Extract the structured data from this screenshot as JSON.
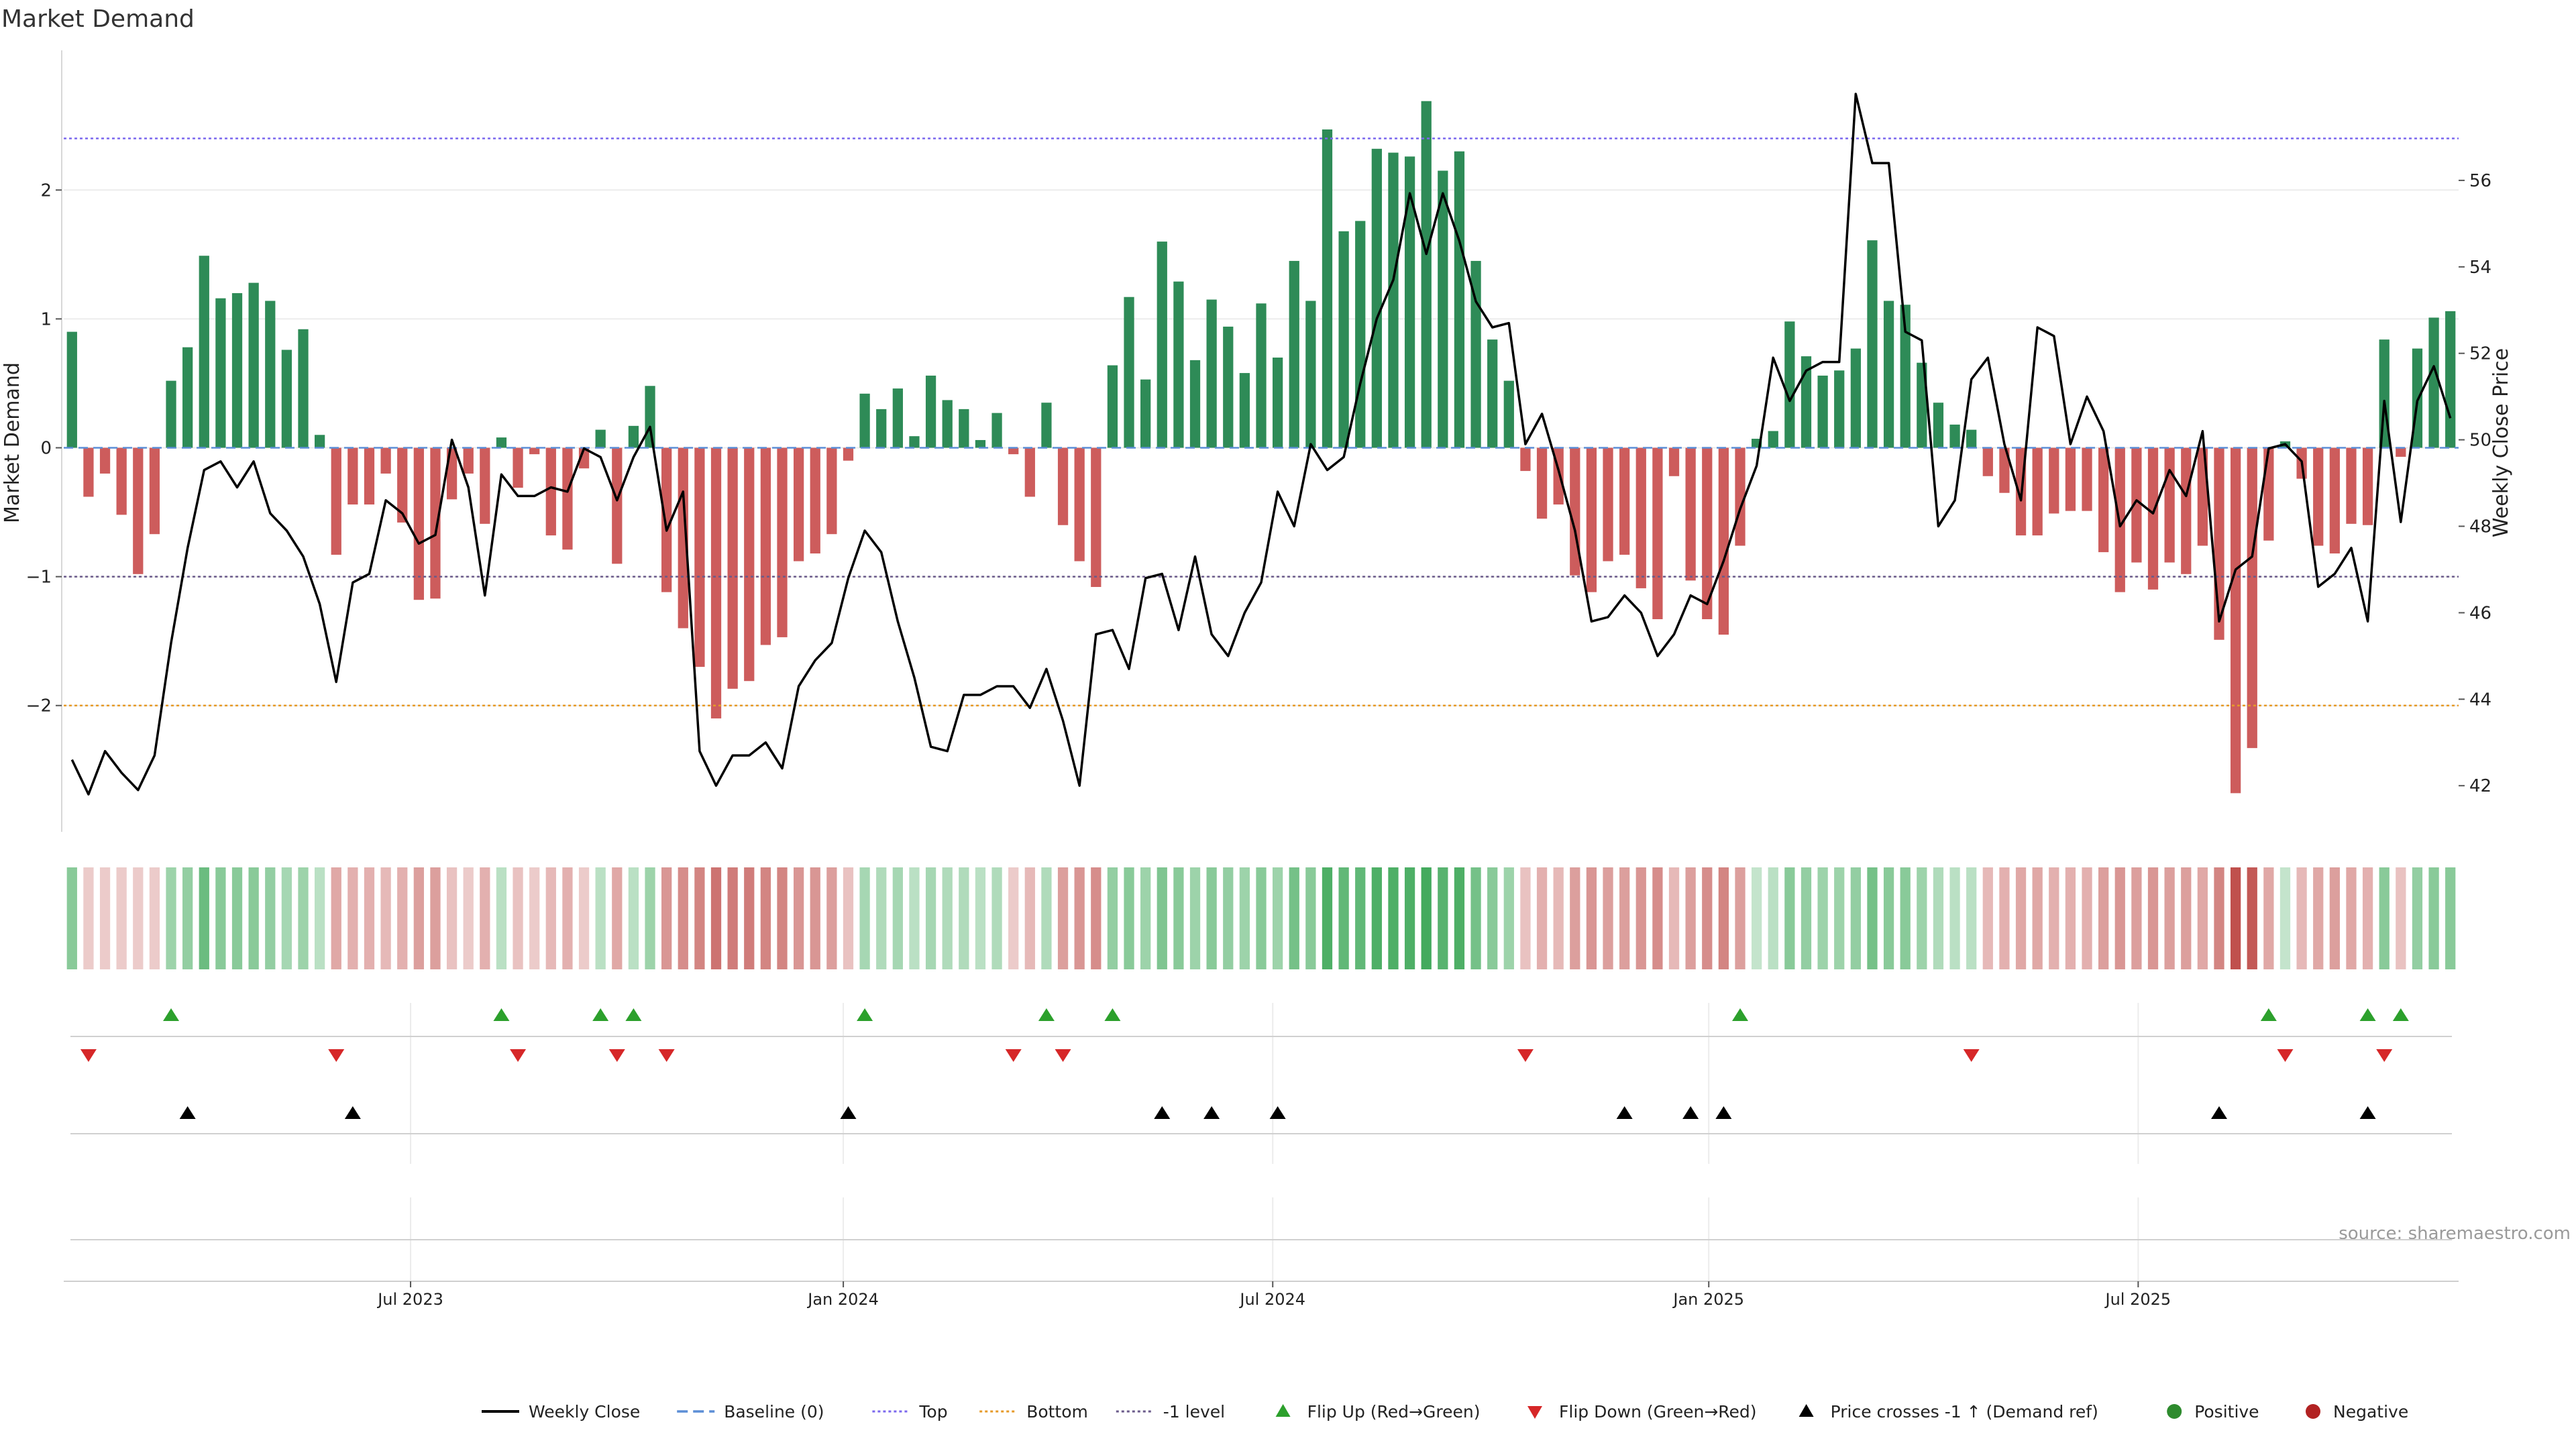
{
  "chart_data": {
    "type": "bar",
    "title": "Market Demand",
    "ylabel": "Market Demand",
    "y2label": "Weekly Close Price",
    "source": "source: sharemaestro.com",
    "ylim": [
      -2.98,
      2.98
    ],
    "y2lim": [
      40.7,
      58.0
    ],
    "yticks": [
      "2",
      "1",
      "0",
      "−1",
      "−2"
    ],
    "y2ticks": [
      "56",
      "54",
      "52",
      "50",
      "48",
      "46",
      "44",
      "42"
    ],
    "xticks": [
      "Jul 2023",
      "Jan 2024",
      "Jul 2024",
      "Jan 2025",
      "Jul 2025"
    ],
    "reference_lines": {
      "top": 2.4,
      "bottom": -2.0,
      "minus_one": -1.0,
      "baseline": 0
    },
    "grid": true,
    "legend_position": "bottom-center",
    "colors": {
      "positive_bar": "#2e8b57",
      "negative_bar": "#cd5c5c",
      "price_line": "#000000",
      "top_line": "#7b68ee",
      "bottom_line": "#e69a28",
      "minus_one_line": "#6a5a8a",
      "flip_up": "#2ca02c",
      "flip_down": "#d62728",
      "cross_marker": "#000000"
    },
    "demand": [
      0.9,
      -0.38,
      -0.2,
      -0.52,
      -0.98,
      -0.67,
      0.52,
      0.78,
      1.49,
      1.16,
      1.2,
      1.28,
      1.14,
      0.76,
      0.92,
      0.1,
      -0.83,
      -0.44,
      -0.44,
      -0.2,
      -0.58,
      -1.18,
      -1.17,
      -0.4,
      -0.2,
      -0.59,
      0.08,
      -0.31,
      -0.05,
      -0.68,
      -0.79,
      -0.16,
      0.14,
      -0.9,
      0.17,
      0.48,
      -1.12,
      -1.4,
      -1.7,
      -2.1,
      -1.87,
      -1.81,
      -1.53,
      -1.47,
      -0.88,
      -0.82,
      -0.67,
      -0.1,
      0.42,
      0.3,
      0.46,
      0.09,
      0.56,
      0.37,
      0.3,
      0.06,
      0.27,
      -0.05,
      -0.38,
      0.35,
      -0.6,
      -0.88,
      -1.08,
      0.64,
      1.17,
      0.53,
      1.6,
      1.29,
      0.68,
      1.15,
      0.94,
      0.58,
      1.12,
      0.7,
      1.45,
      1.14,
      2.47,
      1.68,
      1.76,
      2.32,
      2.29,
      2.26,
      2.69,
      2.15,
      2.3,
      1.45,
      0.84,
      0.52,
      -0.18,
      -0.55,
      -0.44,
      -0.99,
      -1.12,
      -0.88,
      -0.83,
      -1.09,
      -1.33,
      -0.22,
      -1.03,
      -1.33,
      -1.45,
      -0.76,
      0.07,
      0.13,
      0.98,
      0.71,
      0.56,
      0.6,
      0.77,
      1.61,
      1.14,
      1.11,
      0.66,
      0.35,
      0.18,
      0.14,
      -0.22,
      -0.35,
      -0.68,
      -0.68,
      -0.51,
      -0.49,
      -0.49,
      -0.81,
      -1.12,
      -0.89,
      -1.1,
      -0.89,
      -0.98,
      -0.76,
      -1.49,
      -2.68,
      -2.33,
      -0.72,
      0.05,
      -0.24,
      -0.76,
      -0.82,
      -0.59,
      -0.6,
      0.84,
      -0.07,
      0.77,
      1.01,
      1.06
    ],
    "weekly_close": [
      42.6,
      41.8,
      42.8,
      42.3,
      41.9,
      42.7,
      45.3,
      47.5,
      49.3,
      49.5,
      48.9,
      49.5,
      48.3,
      47.9,
      47.3,
      46.2,
      44.4,
      46.7,
      46.9,
      48.6,
      48.3,
      47.6,
      47.8,
      50.0,
      48.9,
      46.4,
      49.2,
      48.7,
      48.7,
      48.9,
      48.8,
      49.8,
      49.6,
      48.6,
      49.6,
      50.3,
      47.9,
      48.8,
      42.8,
      42.0,
      42.7,
      42.7,
      43.0,
      42.4,
      44.3,
      44.9,
      45.3,
      46.8,
      47.9,
      47.4,
      45.8,
      44.5,
      42.9,
      42.8,
      44.1,
      44.1,
      44.3,
      44.3,
      43.8,
      44.7,
      43.5,
      42.0,
      45.5,
      45.6,
      44.7,
      46.8,
      46.9,
      45.6,
      47.3,
      45.5,
      45.0,
      46.0,
      46.7,
      48.8,
      48.0,
      49.9,
      49.3,
      49.6,
      51.3,
      52.8,
      53.7,
      55.7,
      54.3,
      55.7,
      54.6,
      53.2,
      52.6,
      52.7,
      49.9,
      50.6,
      49.3,
      47.9,
      45.8,
      45.9,
      46.4,
      46.0,
      45.0,
      45.5,
      46.4,
      46.2,
      47.2,
      48.4,
      49.4,
      51.9,
      50.9,
      51.6,
      51.8,
      51.8,
      58.0,
      56.4,
      56.4,
      52.5,
      52.3,
      48.0,
      48.6,
      51.4,
      51.9,
      49.9,
      48.6,
      52.6,
      52.4,
      49.9,
      51.0,
      50.2,
      48.0,
      48.6,
      48.3,
      49.3,
      48.7,
      50.2,
      45.8,
      47.0,
      47.3,
      49.8,
      49.9,
      49.5,
      46.6,
      46.9,
      47.5,
      45.8,
      50.9,
      48.1,
      50.9,
      51.7,
      50.5
    ],
    "heat_strip_intensity": [
      0.6,
      0.3,
      0.3,
      0.3,
      0.3,
      0.3,
      0.5,
      0.55,
      0.75,
      0.6,
      0.6,
      0.6,
      0.55,
      0.45,
      0.5,
      0.35,
      0.5,
      0.45,
      0.45,
      0.4,
      0.45,
      0.55,
      0.55,
      0.35,
      0.3,
      0.45,
      0.35,
      0.35,
      0.3,
      0.4,
      0.45,
      0.3,
      0.35,
      0.5,
      0.35,
      0.5,
      0.6,
      0.65,
      0.7,
      0.8,
      0.75,
      0.75,
      0.7,
      0.7,
      0.6,
      0.6,
      0.55,
      0.35,
      0.45,
      0.4,
      0.45,
      0.35,
      0.45,
      0.4,
      0.4,
      0.35,
      0.4,
      0.3,
      0.4,
      0.4,
      0.55,
      0.6,
      0.65,
      0.55,
      0.6,
      0.5,
      0.65,
      0.6,
      0.5,
      0.6,
      0.55,
      0.5,
      0.6,
      0.5,
      0.7,
      0.6,
      0.9,
      0.8,
      0.8,
      0.9,
      0.9,
      0.9,
      0.95,
      0.85,
      0.9,
      0.7,
      0.6,
      0.5,
      0.35,
      0.45,
      0.4,
      0.55,
      0.6,
      0.55,
      0.55,
      0.6,
      0.65,
      0.4,
      0.55,
      0.65,
      0.7,
      0.55,
      0.3,
      0.35,
      0.6,
      0.55,
      0.5,
      0.5,
      0.55,
      0.7,
      0.6,
      0.6,
      0.5,
      0.4,
      0.35,
      0.35,
      0.4,
      0.45,
      0.5,
      0.5,
      0.45,
      0.45,
      0.45,
      0.55,
      0.6,
      0.55,
      0.6,
      0.55,
      0.55,
      0.5,
      0.7,
      1.0,
      0.95,
      0.5,
      0.3,
      0.4,
      0.5,
      0.55,
      0.5,
      0.45,
      0.6,
      0.35,
      0.55,
      0.6,
      0.6
    ],
    "flip_up_weeks": [
      6,
      26,
      32,
      34,
      48,
      59,
      63,
      101,
      133,
      139,
      141
    ],
    "flip_down_weeks": [
      1,
      16,
      27,
      33,
      36,
      57,
      60,
      88,
      115,
      134,
      140
    ],
    "price_cross_weeks": [
      7,
      17,
      47,
      66,
      69,
      73,
      94,
      98,
      100,
      130,
      139
    ],
    "legend": [
      {
        "label": "Weekly Close",
        "symbol": "line",
        "color": "#000000"
      },
      {
        "label": "Baseline (0)",
        "symbol": "dash",
        "color": "#5b8ed6"
      },
      {
        "label": "Top",
        "symbol": "dot",
        "color": "#7b68ee"
      },
      {
        "label": "Bottom",
        "symbol": "dot",
        "color": "#e69a28"
      },
      {
        "label": "-1 level",
        "symbol": "dot",
        "color": "#6a5a8a"
      },
      {
        "label": "Flip Up (Red→Green)",
        "symbol": "tri-up",
        "color": "#2ca02c"
      },
      {
        "label": "Flip Down (Green→Red)",
        "symbol": "tri-down",
        "color": "#d62728"
      },
      {
        "label": "Price crosses -1 ↑ (Demand ref)",
        "symbol": "tri-up",
        "color": "#000000"
      },
      {
        "label": "Positive",
        "symbol": "circle",
        "color": "#2e8b2e"
      },
      {
        "label": "Negative",
        "symbol": "circle",
        "color": "#b22222"
      }
    ]
  }
}
